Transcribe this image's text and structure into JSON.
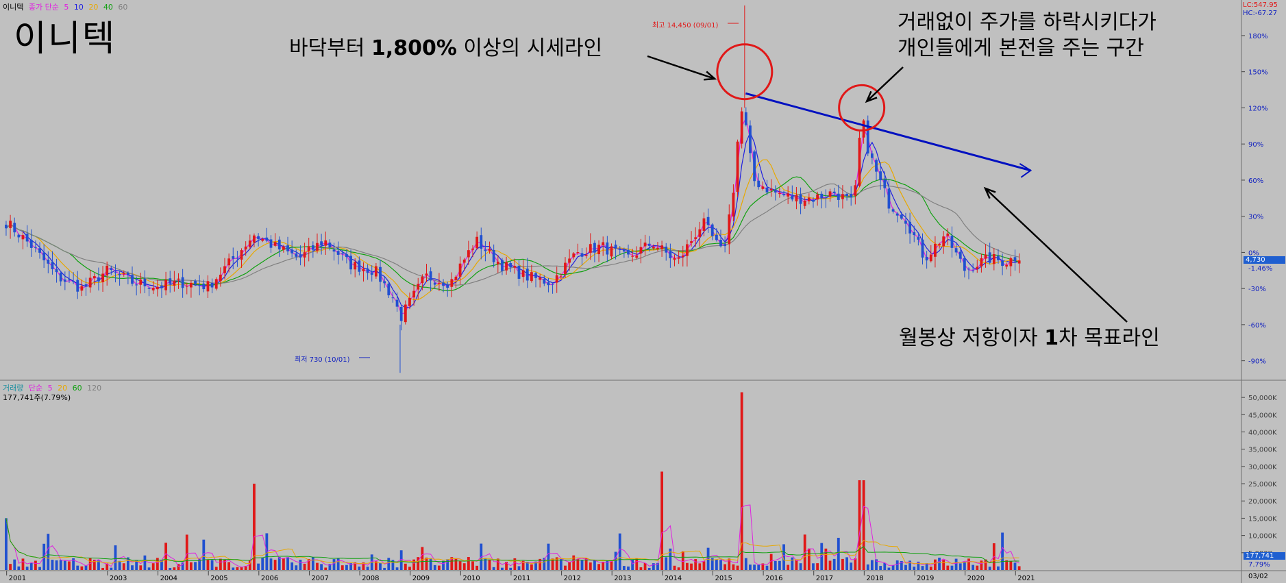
{
  "price_legend": {
    "name": "이니텍",
    "ma_label": "종가 단순",
    "periods": [
      "5",
      "10",
      "20",
      "40",
      "60"
    ],
    "period_colors": [
      "#e020e0",
      "#2020e0",
      "#e8a800",
      "#10a010",
      "#808080"
    ]
  },
  "volume_legend": {
    "name": "거래량",
    "ma_label": "단순",
    "periods": [
      "5",
      "20",
      "60",
      "120"
    ],
    "period_colors": [
      "#e020e0",
      "#e8a800",
      "#10a010",
      "#808080"
    ],
    "current": "177,741주(7.79%)"
  },
  "title": "이니텍",
  "annotations": {
    "floor_prefix": "바닥부터 ",
    "floor_bold": "1,800%",
    "floor_suffix": " 이상의 시세라인",
    "dump_line1": "거래없이 주가를 하락시키다가",
    "dump_line2": "개인들에게 본전을 주는 구간",
    "target_prefix": "월봉상 저항이자 ",
    "target_bold": "1",
    "target_suffix": "차 목표라인"
  },
  "markers": {
    "high": "최고 14,450 (09/01)",
    "low": "최저 730 (10/01)"
  },
  "right_labels": {
    "lc": "LC:547.95",
    "hc": "HC:-67.27",
    "current_price": "4,730",
    "current_change": "-1.46%",
    "current_volume": "177,741",
    "current_volume_pct": "7.79%",
    "date": "03/02"
  },
  "colors": {
    "up": "#e01818",
    "down": "#2050d0",
    "trendline": "#0010c0",
    "circle": "#e01818",
    "background": "#c0c0c0"
  },
  "chart_data": [
    {
      "type": "line",
      "title": "이니텍",
      "x_ticks": [
        "2001",
        "2003",
        "2004",
        "2005",
        "2006",
        "2007",
        "2008",
        "2009",
        "2010",
        "2011",
        "2012",
        "2013",
        "2014",
        "2015",
        "2016",
        "2017",
        "2018",
        "2019",
        "2020",
        "2021"
      ],
      "y_axis_percent_ticks": [
        "180%",
        "150%",
        "120%",
        "90%",
        "60%",
        "30%",
        "0%",
        "-30%",
        "-60%",
        "-90%"
      ],
      "y_axis_percent_values": [
        180,
        150,
        120,
        90,
        60,
        30,
        0,
        -30,
        -60,
        -90
      ],
      "ylim_percent": [
        -105,
        205
      ],
      "series": [
        {
          "name": "종가",
          "x": [
            2001.0,
            2001.5,
            2002.0,
            2002.5,
            2003.0,
            2003.5,
            2004.0,
            2004.5,
            2005.0,
            2005.5,
            2005.9,
            2006.3,
            2006.8,
            2007.3,
            2007.8,
            2008.3,
            2008.7,
            2008.8,
            2009.3,
            2009.8,
            2010.3,
            2010.8,
            2011.3,
            2011.8,
            2012.3,
            2012.8,
            2013.3,
            2013.8,
            2014.3,
            2014.8,
            2015.2,
            2015.4,
            2015.55,
            2015.65,
            2015.8,
            2016.2,
            2016.6,
            2017.0,
            2017.4,
            2017.8,
            2017.95,
            2018.05,
            2018.2,
            2018.5,
            2018.8,
            2019.2,
            2019.6,
            2020.0,
            2020.2,
            2020.5,
            2020.8,
            2021.1
          ],
          "y": [
            25,
            5,
            -20,
            -30,
            -15,
            -25,
            -28,
            -25,
            -28,
            -5,
            15,
            5,
            -5,
            10,
            -10,
            -15,
            -40,
            -55,
            -20,
            -25,
            10,
            -10,
            -20,
            -25,
            0,
            5,
            -5,
            8,
            -8,
            25,
            -2,
            50,
            120,
            105,
            60,
            50,
            45,
            45,
            50,
            40,
            115,
            90,
            70,
            40,
            30,
            -5,
            15,
            -15,
            -10,
            -5,
            -8,
            -2
          ]
        }
      ],
      "trendline_percent": {
        "start": [
          2015.65,
          132
        ],
        "end": [
          2021.3,
          68
        ]
      },
      "high_point": {
        "x": 2015.63,
        "y_percent": 205,
        "label": "최고 14,450 (09/01)"
      },
      "low_point": {
        "x": 2008.8,
        "y_percent": -100,
        "label": "최저 730 (10/01)"
      }
    },
    {
      "type": "bar",
      "title": "거래량",
      "y_ticks": [
        "50,000K",
        "45,000K",
        "40,000K",
        "35,000K",
        "30,000K",
        "25,000K",
        "20,000K",
        "15,000K",
        "10,000K",
        "5,000K"
      ],
      "y_tick_values": [
        50000,
        45000,
        40000,
        35000,
        30000,
        25000,
        20000,
        15000,
        10000,
        5000
      ],
      "ylim": [
        0,
        53000
      ],
      "spikes_k": [
        {
          "x": 2001.0,
          "value": 15000
        },
        {
          "x": 2005.9,
          "value": 25000
        },
        {
          "x": 2014.0,
          "value": 28500
        },
        {
          "x": 2015.55,
          "value": 51500
        },
        {
          "x": 2017.95,
          "value": 26000
        }
      ]
    }
  ]
}
